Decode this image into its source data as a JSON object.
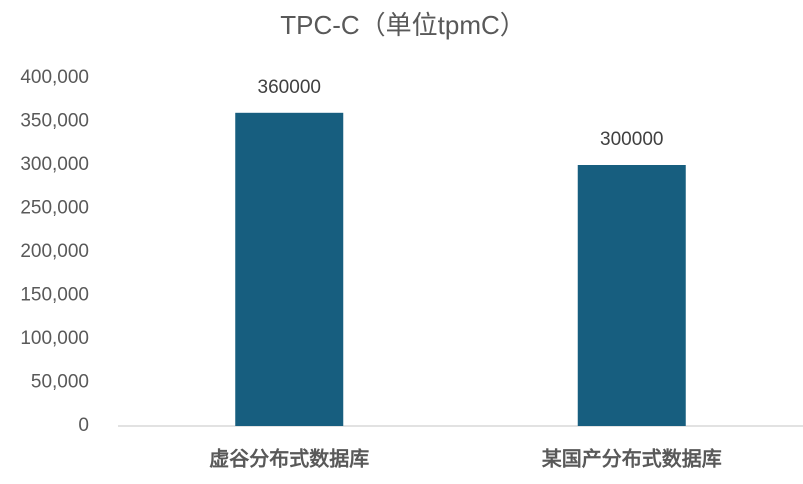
{
  "chart_data": {
    "type": "bar",
    "title": "TPC-C（单位tpmC）",
    "categories": [
      "虚谷分布式数据库",
      "某国产分布式数据库"
    ],
    "values": [
      360000,
      300000
    ],
    "color": "#175e7f",
    "ylim": [
      0,
      400000
    ],
    "yticks": [
      0,
      {
        "value": 50000,
        "label": "50,000"
      },
      {
        "value": 100000,
        "label": "100,000"
      },
      {
        "value": 150000,
        "label": "150,000"
      },
      {
        "value": 200000,
        "label": "200,000"
      },
      {
        "value": 250000,
        "label": "250,000"
      },
      {
        "value": 300000,
        "label": "300,000"
      },
      {
        "value": 350000,
        "label": "350,000"
      },
      {
        "value": 400000,
        "label": "400,000"
      }
    ],
    "grid": false
  }
}
